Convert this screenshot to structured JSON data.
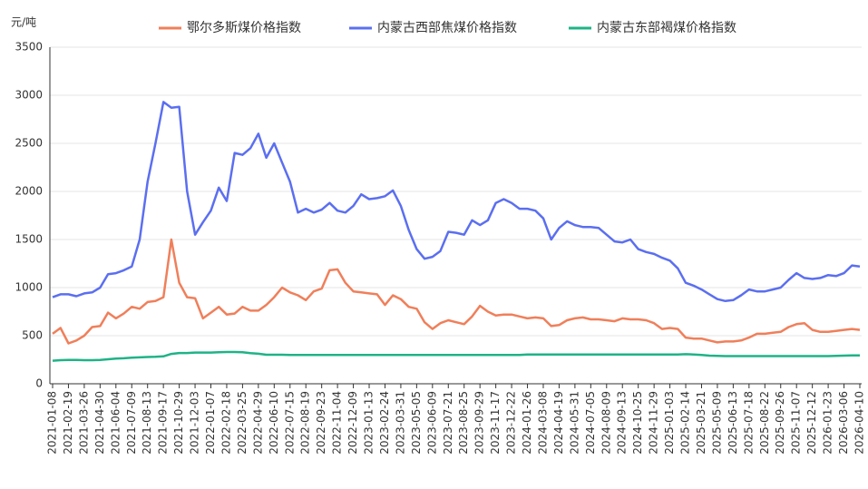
{
  "chart_data": {
    "type": "line",
    "y_label": "元/吨",
    "categories": [
      "2021-01-08",
      null,
      "2021-02-19",
      null,
      "2021-03-26",
      null,
      "2021-04-30",
      null,
      "2021-06-04",
      null,
      "2021-07-09",
      null,
      "2021-08-13",
      null,
      "2021-09-17",
      null,
      "2021-10-29",
      null,
      "2021-12-03",
      null,
      "2022-01-07",
      null,
      "2022-02-18",
      null,
      "2022-03-25",
      null,
      "2022-04-29",
      null,
      "2022-06-10",
      null,
      "2022-07-15",
      null,
      "2022-08-19",
      null,
      "2022-09-23",
      null,
      "2022-11-04",
      null,
      "2022-12-09",
      null,
      "2023-01-13",
      null,
      "2023-02-24",
      null,
      "2023-03-31",
      null,
      "2023-05-05",
      null,
      "2023-06-09",
      null,
      "2023-07-21",
      null,
      "2023-08-25",
      null,
      "2023-09-29",
      null,
      "2023-11-17",
      null,
      "2023-12-22",
      null,
      "2024-01-26",
      null,
      "2024-03-08",
      null,
      "2024-04-19",
      null,
      "2024-05-31",
      null,
      "2024-07-05",
      null,
      "2024-08-09",
      null,
      "2024-09-13",
      null,
      "2024-10-25",
      null,
      "2024-11-29",
      null,
      "2025-01-03",
      null,
      "2025-02-14",
      null,
      "2025-03-21",
      null,
      "2025-05-09",
      null,
      "2025-06-13",
      null,
      "2025-07-18",
      null,
      "2025-08-22",
      null,
      "2025-09-26",
      null,
      "2025-11-07",
      null,
      "2025-12-12",
      null,
      "2026-01-23",
      null,
      "2026-03-06",
      null,
      "2026-04-10"
    ],
    "series": [
      {
        "name": "鄂尔多斯煤价格指数",
        "color": "#f07f5a",
        "values": [
          520,
          580,
          420,
          450,
          500,
          590,
          600,
          740,
          680,
          730,
          800,
          780,
          850,
          860,
          900,
          1500,
          1050,
          900,
          890,
          680,
          740,
          800,
          720,
          730,
          800,
          760,
          760,
          820,
          900,
          1000,
          950,
          920,
          870,
          960,
          990,
          1180,
          1190,
          1050,
          960,
          950,
          940,
          930,
          820,
          920,
          880,
          800,
          780,
          640,
          570,
          630,
          660,
          640,
          620,
          700,
          810,
          750,
          710,
          720,
          720,
          700,
          680,
          690,
          680,
          600,
          610,
          660,
          680,
          690,
          670,
          670,
          660,
          650,
          680,
          670,
          670,
          660,
          630,
          570,
          580,
          570,
          480,
          470,
          470,
          450,
          430,
          440,
          440,
          450,
          480,
          520,
          520,
          530,
          540,
          590,
          620,
          630,
          560,
          540,
          540,
          550,
          560,
          570,
          560
        ]
      },
      {
        "name": "内蒙古西部焦煤价格指数",
        "color": "#5b6ff0",
        "values": [
          900,
          930,
          930,
          910,
          940,
          950,
          1000,
          1140,
          1150,
          1180,
          1220,
          1500,
          2100,
          2500,
          2930,
          2870,
          2880,
          2000,
          1550,
          1680,
          1800,
          2040,
          1900,
          2400,
          2380,
          2450,
          2600,
          2350,
          2500,
          2300,
          2100,
          1780,
          1820,
          1780,
          1810,
          1880,
          1800,
          1780,
          1850,
          1970,
          1920,
          1930,
          1950,
          2010,
          1850,
          1600,
          1400,
          1300,
          1320,
          1380,
          1580,
          1570,
          1550,
          1700,
          1650,
          1700,
          1880,
          1920,
          1880,
          1820,
          1820,
          1800,
          1720,
          1500,
          1620,
          1690,
          1650,
          1630,
          1630,
          1620,
          1550,
          1480,
          1470,
          1500,
          1400,
          1370,
          1350,
          1310,
          1280,
          1200,
          1050,
          1020,
          980,
          930,
          880,
          860,
          870,
          920,
          980,
          960,
          960,
          980,
          1000,
          1080,
          1150,
          1100,
          1090,
          1100,
          1130,
          1120,
          1150,
          1230,
          1220
        ]
      },
      {
        "name": "内蒙古东部褐煤价格指数",
        "color": "#1fb386",
        "values": [
          240,
          245,
          248,
          248,
          245,
          245,
          248,
          255,
          262,
          265,
          272,
          275,
          278,
          280,
          285,
          310,
          320,
          320,
          325,
          325,
          325,
          328,
          330,
          330,
          328,
          318,
          312,
          302,
          302,
          302,
          300,
          300,
          300,
          300,
          300,
          300,
          300,
          300,
          300,
          300,
          300,
          300,
          300,
          300,
          300,
          300,
          300,
          300,
          300,
          300,
          300,
          300,
          300,
          300,
          300,
          300,
          300,
          300,
          300,
          300,
          305,
          305,
          305,
          305,
          305,
          305,
          305,
          305,
          305,
          305,
          305,
          305,
          305,
          305,
          305,
          305,
          305,
          305,
          305,
          305,
          308,
          305,
          300,
          292,
          290,
          288,
          288,
          288,
          288,
          288,
          288,
          288,
          288,
          288,
          288,
          288,
          288,
          288,
          288,
          290,
          292,
          295,
          295
        ]
      }
    ],
    "ylim": [
      0,
      3500
    ],
    "yticks": [
      0,
      500,
      1000,
      1500,
      2000,
      2500,
      3000,
      3500
    ],
    "grid": true,
    "legend": "top"
  }
}
